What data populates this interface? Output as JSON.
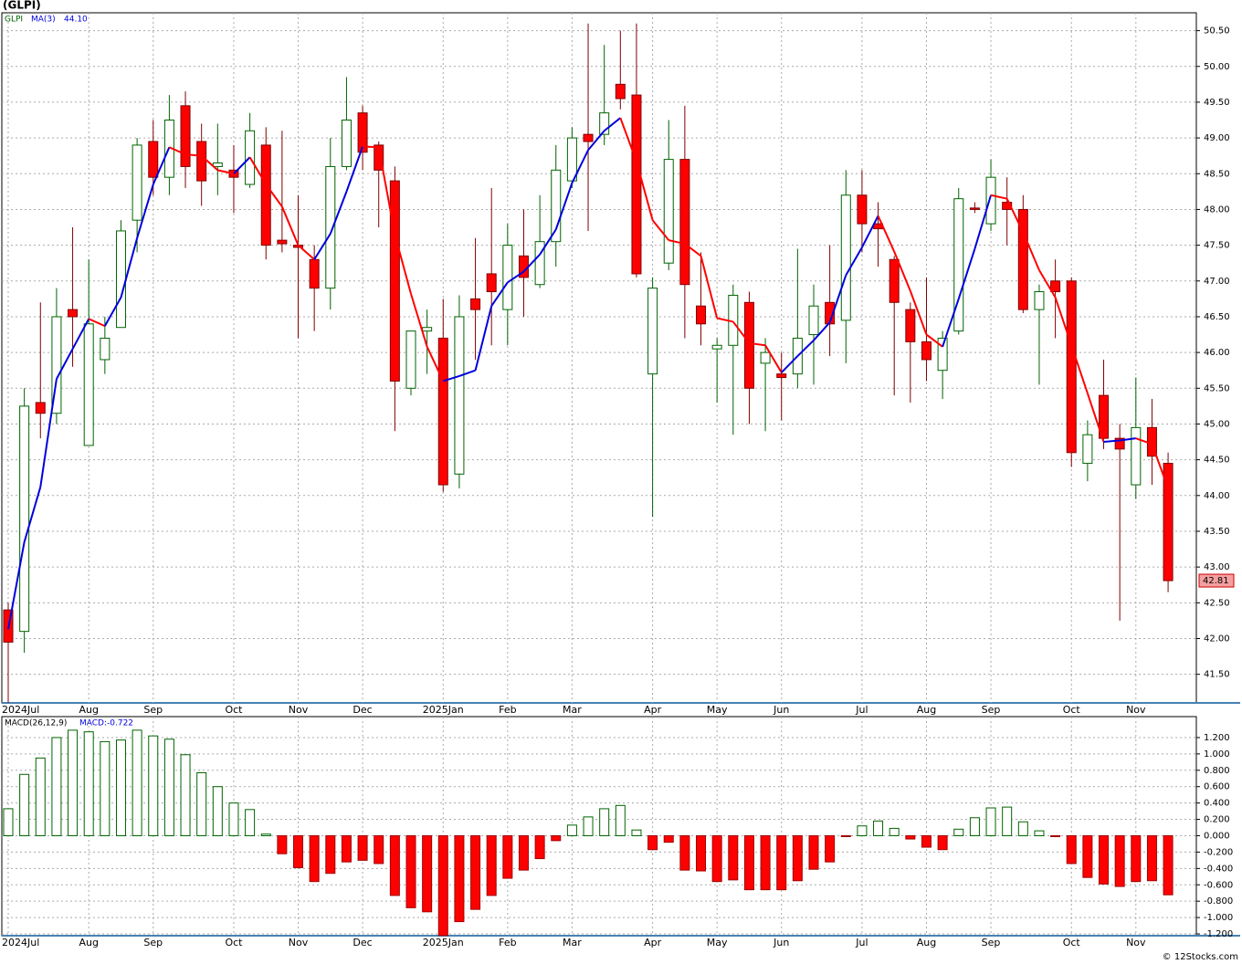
{
  "chart_data": [
    {
      "type": "candlestick",
      "title": "(GLPI)",
      "categories": [
        "2024Jul",
        null,
        null,
        null,
        null,
        "Aug",
        null,
        null,
        null,
        "Sep",
        null,
        null,
        null,
        null,
        "Oct",
        null,
        null,
        null,
        "Nov",
        null,
        null,
        null,
        "Dec",
        null,
        null,
        null,
        null,
        "2025Jan",
        null,
        null,
        null,
        "Feb",
        null,
        null,
        null,
        "Mar",
        null,
        null,
        null,
        null,
        "Apr",
        null,
        null,
        null,
        "May",
        null,
        null,
        null,
        "Jun",
        null,
        null,
        null,
        null,
        "Jul",
        null,
        null,
        null,
        "Aug",
        null,
        null,
        null,
        "Sep",
        null,
        null,
        null,
        null,
        "Oct",
        null,
        null,
        null,
        "Nov",
        null,
        null
      ],
      "series": [
        {
          "name": "GLPI",
          "up_color": "#006400",
          "down_color": "#ff0000",
          "open": [
            42.4,
            42.1,
            45.3,
            45.15,
            46.6,
            44.7,
            45.9,
            46.35,
            47.85,
            48.95,
            48.45,
            49.45,
            48.95,
            48.6,
            48.55,
            48.35,
            48.9,
            47.57,
            47.5,
            47.3,
            46.9,
            48.6,
            49.35,
            48.9,
            48.4,
            45.5,
            46.3,
            46.2,
            44.3,
            46.75,
            47.1,
            46.6,
            47.35,
            46.95,
            47.55,
            48.4,
            49.05,
            49.05,
            49.75,
            49.6,
            45.7,
            47.25,
            48.7,
            46.65,
            46.05,
            46.1,
            46.7,
            45.85,
            45.7,
            45.7,
            46.25,
            46.7,
            46.45,
            48.2,
            47.8,
            47.3,
            46.6,
            46.15,
            45.75,
            46.3,
            48.02,
            47.8,
            48.1,
            48.0,
            46.6,
            47.0,
            47.0,
            44.45,
            45.4,
            44.8,
            44.15,
            44.95,
            44.45
          ],
          "high": [
            42.5,
            45.5,
            46.7,
            46.9,
            47.75,
            47.3,
            46.5,
            47.85,
            49.0,
            49.25,
            49.6,
            49.65,
            49.2,
            49.2,
            48.9,
            49.35,
            49.15,
            49.1,
            48.2,
            47.5,
            49.0,
            49.85,
            49.45,
            48.95,
            48.6,
            46.3,
            46.6,
            46.75,
            46.8,
            47.6,
            48.3,
            47.8,
            48.0,
            48.2,
            48.9,
            49.15,
            50.6,
            50.3,
            50.5,
            50.6,
            47.05,
            49.25,
            49.45,
            47.4,
            46.2,
            46.95,
            46.85,
            46.2,
            46.0,
            47.45,
            46.95,
            47.5,
            48.55,
            48.55,
            48.1,
            47.35,
            46.7,
            47.05,
            46.3,
            48.3,
            48.1,
            48.7,
            48.45,
            48.2,
            46.95,
            47.3,
            47.05,
            45.05,
            45.9,
            45.0,
            45.65,
            45.35,
            44.6
          ],
          "low": [
            41.1,
            41.8,
            44.8,
            45.0,
            45.8,
            44.7,
            45.7,
            46.35,
            47.4,
            48.2,
            48.2,
            48.3,
            48.05,
            48.2,
            47.95,
            48.3,
            47.3,
            47.4,
            46.2,
            46.3,
            46.6,
            48.55,
            48.55,
            47.75,
            44.9,
            45.4,
            45.7,
            44.05,
            44.1,
            45.9,
            46.1,
            46.1,
            46.5,
            46.9,
            47.2,
            48.3,
            47.7,
            48.9,
            49.4,
            47.05,
            43.7,
            47.15,
            46.2,
            46.1,
            45.3,
            44.85,
            45.0,
            44.9,
            45.05,
            45.5,
            45.55,
            45.95,
            45.85,
            47.4,
            47.2,
            45.4,
            45.3,
            45.6,
            45.35,
            46.25,
            47.95,
            47.7,
            47.5,
            46.55,
            45.55,
            46.2,
            44.4,
            44.2,
            44.65,
            42.25,
            43.95,
            44.15,
            42.65
          ],
          "close": [
            41.95,
            45.25,
            45.15,
            46.5,
            46.5,
            46.4,
            46.2,
            47.7,
            48.9,
            48.45,
            49.25,
            48.6,
            48.4,
            48.65,
            48.45,
            49.1,
            47.5,
            47.52,
            47.47,
            46.9,
            48.6,
            49.25,
            48.8,
            48.55,
            45.6,
            46.3,
            46.35,
            44.15,
            46.5,
            46.6,
            46.85,
            47.5,
            47.05,
            47.55,
            48.55,
            49.0,
            48.95,
            49.35,
            49.55,
            47.1,
            46.9,
            48.7,
            46.95,
            46.4,
            46.1,
            46.8,
            45.5,
            46.0,
            45.65,
            46.2,
            46.65,
            46.4,
            48.2,
            47.8,
            47.73,
            46.7,
            46.15,
            45.9,
            46.2,
            48.15,
            48.0,
            48.45,
            48.0,
            46.6,
            46.85,
            46.85,
            44.6,
            44.85,
            44.8,
            44.65,
            44.95,
            44.55,
            42.81
          ]
        }
      ],
      "ma": {
        "name": "MA(3)",
        "label": "44.10",
        "up_color": "#0000dd",
        "down_color": "#ff0000",
        "values": [
          42.13,
          43.35,
          44.12,
          45.63,
          46.05,
          46.47,
          46.37,
          46.77,
          47.6,
          48.35,
          48.87,
          48.77,
          48.75,
          48.55,
          48.5,
          48.73,
          48.35,
          48.04,
          47.5,
          47.3,
          47.66,
          48.25,
          48.88,
          48.87,
          47.65,
          46.82,
          46.08,
          45.6,
          45.67,
          45.75,
          46.65,
          46.98,
          47.13,
          47.37,
          47.72,
          48.37,
          48.83,
          49.1,
          49.28,
          48.67,
          47.85,
          47.57,
          47.52,
          47.35,
          46.48,
          46.43,
          46.13,
          46.1,
          45.72,
          45.95,
          46.17,
          46.42,
          47.08,
          47.47,
          47.91,
          47.41,
          46.86,
          46.25,
          46.08,
          46.75,
          47.45,
          48.2,
          48.15,
          47.68,
          47.15,
          46.77,
          46.1,
          45.43,
          44.75,
          44.77,
          44.8,
          44.72,
          44.1
        ]
      },
      "ylim": [
        41.1,
        50.75
      ],
      "yticks": [
        {
          "value": 41.5,
          "label": "41.50"
        },
        {
          "value": 42,
          "label": "42.00"
        },
        {
          "value": 42.5,
          "label": "42.50"
        },
        {
          "value": 43,
          "label": "43.00"
        },
        {
          "value": 43.5,
          "label": "43.50"
        },
        {
          "value": 44,
          "label": "44.00"
        },
        {
          "value": 44.5,
          "label": "44.50"
        },
        {
          "value": 45,
          "label": "45.00"
        },
        {
          "value": 45.5,
          "label": "45.50"
        },
        {
          "value": 46,
          "label": "46.00"
        },
        {
          "value": 46.5,
          "label": "46.50"
        },
        {
          "value": 47,
          "label": "47.00"
        },
        {
          "value": 47.5,
          "label": "47.50"
        },
        {
          "value": 48,
          "label": "48.00"
        },
        {
          "value": 48.5,
          "label": "48.50"
        },
        {
          "value": 49,
          "label": "49.00"
        },
        {
          "value": 49.5,
          "label": "49.50"
        },
        {
          "value": 50,
          "label": "50.00"
        },
        {
          "value": 50.5,
          "label": "50.50"
        }
      ],
      "grid": true
    },
    {
      "type": "bar",
      "title": "MACD(26,12,9)",
      "legend": "MACD:-0.722",
      "up_color": "#006400",
      "down_color": "#ff0000",
      "values": [
        0.33,
        0.75,
        0.95,
        1.2,
        1.29,
        1.27,
        1.15,
        1.17,
        1.29,
        1.22,
        1.18,
        0.99,
        0.77,
        0.6,
        0.4,
        0.32,
        0.02,
        -0.22,
        -0.39,
        -0.56,
        -0.46,
        -0.32,
        -0.3,
        -0.34,
        -0.73,
        -0.88,
        -0.93,
        -1.22,
        -1.05,
        -0.9,
        -0.73,
        -0.52,
        -0.42,
        -0.28,
        -0.06,
        0.13,
        0.23,
        0.33,
        0.37,
        0.07,
        -0.17,
        -0.08,
        -0.42,
        -0.43,
        -0.56,
        -0.54,
        -0.66,
        -0.66,
        -0.66,
        -0.55,
        -0.41,
        -0.32,
        -0.01,
        0.12,
        0.18,
        0.09,
        -0.04,
        -0.14,
        -0.17,
        0.08,
        0.22,
        0.34,
        0.35,
        0.17,
        0.06,
        -0.01,
        -0.34,
        -0.51,
        -0.59,
        -0.62,
        -0.56,
        -0.55,
        -0.722
      ],
      "ylim": [
        -1.222,
        1.456
      ],
      "yticks": [
        {
          "value": -1.2,
          "label": "-1.200"
        },
        {
          "value": -1,
          "label": "-1.000"
        },
        {
          "value": -0.8,
          "label": "-0.800"
        },
        {
          "value": -0.6,
          "label": "-0.600"
        },
        {
          "value": -0.4,
          "label": "-0.400"
        },
        {
          "value": -0.2,
          "label": "-0.200"
        },
        {
          "value": 0,
          "label": "0.000"
        },
        {
          "value": 0.2,
          "label": "0.200"
        },
        {
          "value": 0.4,
          "label": "0.400"
        },
        {
          "value": 0.6,
          "label": "0.600"
        },
        {
          "value": 0.8,
          "label": "0.800"
        },
        {
          "value": 1,
          "label": "1.000"
        },
        {
          "value": 1.2,
          "label": "1.200"
        }
      ],
      "grid": true
    }
  ],
  "source": "© 12Stocks.com"
}
